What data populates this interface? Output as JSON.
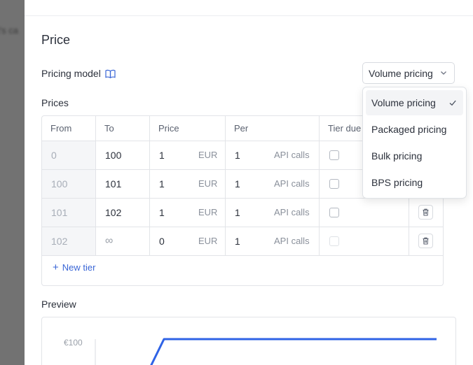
{
  "background": {
    "text": "t's ca"
  },
  "drawer": {
    "title": "Price",
    "pricing_model": {
      "label": "Pricing model",
      "selected": "Volume pricing",
      "options": [
        {
          "label": "Volume pricing",
          "selected": true
        },
        {
          "label": "Packaged pricing",
          "selected": false
        },
        {
          "label": "Bulk pricing",
          "selected": false
        },
        {
          "label": "BPS pricing",
          "selected": false
        }
      ]
    },
    "prices": {
      "label": "Prices",
      "columns": [
        "From",
        "To",
        "Price",
        "Per",
        "Tier due"
      ],
      "rows": [
        {
          "from": "0",
          "to": "100",
          "price": "1",
          "currency": "EUR",
          "per": "1",
          "unit": "API calls",
          "tier_due": false,
          "deletable": false
        },
        {
          "from": "100",
          "to": "101",
          "price": "1",
          "currency": "EUR",
          "per": "1",
          "unit": "API calls",
          "tier_due": false,
          "deletable": false
        },
        {
          "from": "101",
          "to": "102",
          "price": "1",
          "currency": "EUR",
          "per": "1",
          "unit": "API calls",
          "tier_due": false,
          "deletable": true
        },
        {
          "from": "102",
          "to": "∞",
          "price": "0",
          "currency": "EUR",
          "per": "1",
          "unit": "API calls",
          "tier_due": false,
          "deletable": true
        }
      ],
      "new_tier": "New tier"
    },
    "preview": {
      "label": "Preview",
      "ytick": "€100",
      "line_color": "#2f63e6"
    }
  },
  "colors": {
    "accent": "#3a66d6",
    "line": "#2f63e6"
  }
}
